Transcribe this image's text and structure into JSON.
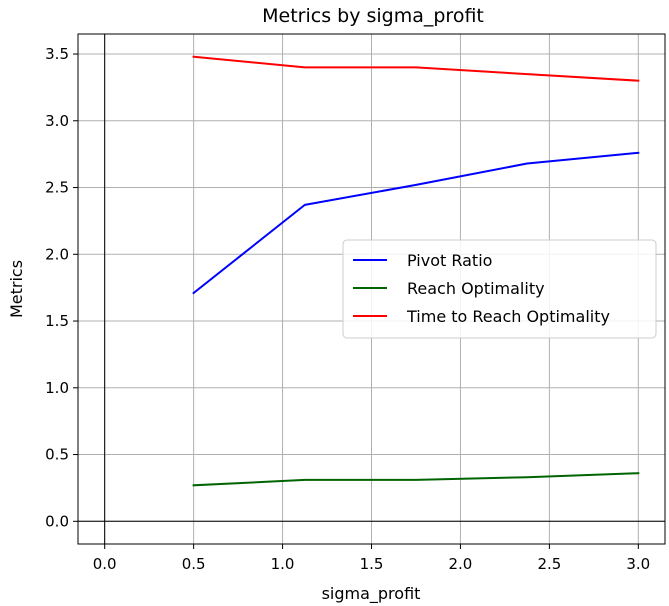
{
  "chart_data": {
    "type": "line",
    "title": "Metrics by sigma_profit",
    "xlabel": "sigma_profit",
    "ylabel": "Metrics",
    "xlim": [
      -0.15,
      3.15
    ],
    "ylim": [
      -0.17,
      3.65
    ],
    "xticks": [
      "0.0",
      "0.5",
      "1.0",
      "1.5",
      "2.0",
      "2.5",
      "3.0"
    ],
    "yticks": [
      "0.0",
      "0.5",
      "1.0",
      "1.5",
      "2.0",
      "2.5",
      "3.0",
      "3.5"
    ],
    "x": [
      0.5,
      1.125,
      1.75,
      2.375,
      3.0
    ],
    "grid": true,
    "legend_position": "center-right",
    "series": [
      {
        "name": "Pivot Ratio",
        "color": "#0000ff",
        "values": [
          1.71,
          2.37,
          2.52,
          2.68,
          2.76
        ]
      },
      {
        "name": "Reach Optimality",
        "color": "#006400",
        "values": [
          0.27,
          0.31,
          0.31,
          0.33,
          0.36
        ]
      },
      {
        "name": "Time to Reach Optimality",
        "color": "#ff0000",
        "values": [
          3.48,
          3.4,
          3.4,
          3.35,
          3.3
        ]
      }
    ]
  }
}
